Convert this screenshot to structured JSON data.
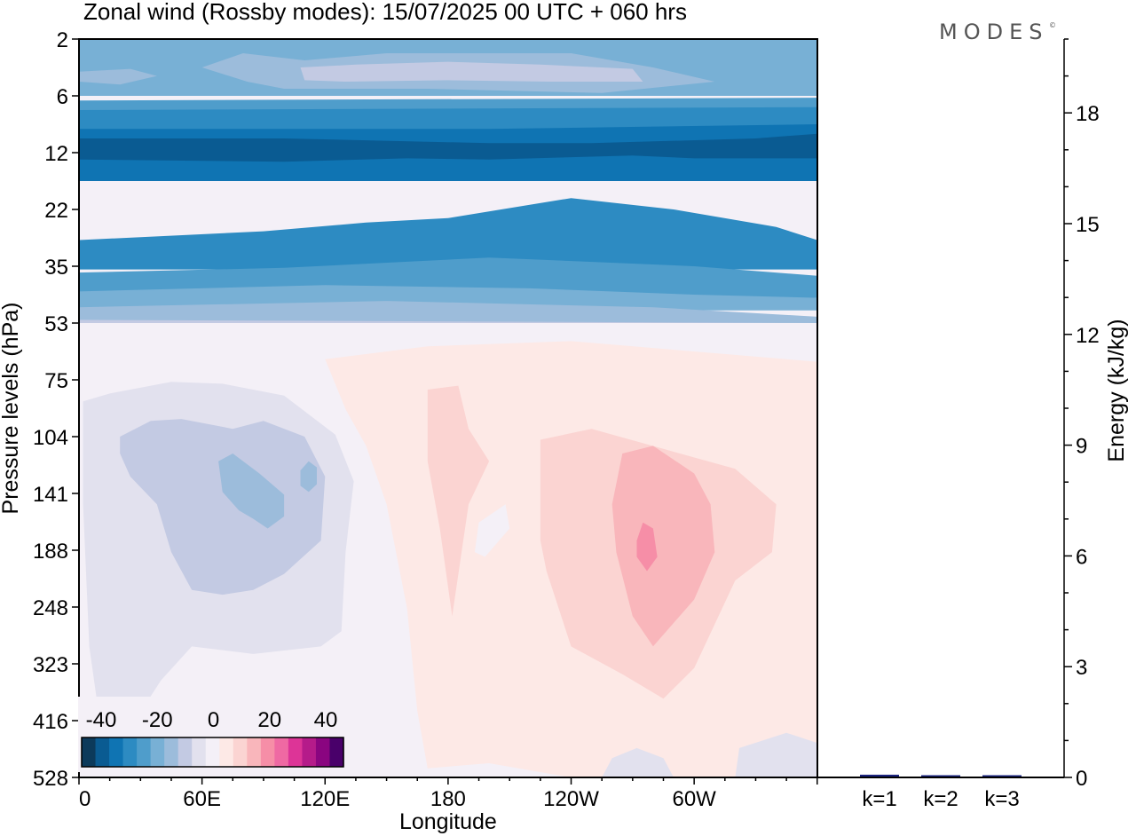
{
  "brand": {
    "logo_text": "MODES",
    "logo_mark": "©"
  },
  "chart_data": [
    {
      "type": "heatmap",
      "title": "Zonal wind (Rossby modes):  15/07/2025  00 UTC  + 060 hrs",
      "xlabel": "Longitude",
      "ylabel": "Pressure levels (hPa)",
      "x_ticks": [
        "0",
        "60E",
        "120E",
        "180",
        "120W",
        "60W"
      ],
      "y_ticks": [
        "2",
        "6",
        "12",
        "22",
        "35",
        "53",
        "75",
        "104",
        "141",
        "188",
        "248",
        "323",
        "416",
        "528"
      ],
      "colorbar": {
        "tick_labels": [
          "-40",
          "-20",
          "0",
          "20",
          "40"
        ],
        "colors": [
          "#0c3a5b",
          "#0a5b92",
          "#0f74b3",
          "#2d8bc2",
          "#4f9dcb",
          "#78b0d5",
          "#9cbcdb",
          "#c3cae3",
          "#e2e1ee",
          "#f4f0f7",
          "#fde9e6",
          "#fbd4d2",
          "#f9b6bb",
          "#f68ea7",
          "#ef69a3",
          "#dd3497",
          "#b51b8a",
          "#8a0580",
          "#49006a"
        ]
      },
      "features": [
        {
          "level": 9,
          "path": [
            [
              0,
              2
            ],
            [
              360,
              2
            ],
            [
              360,
              528
            ],
            [
              0,
              528
            ]
          ]
        },
        {
          "level": 5,
          "path": [
            [
              0,
              2
            ],
            [
              360,
              2
            ],
            [
              360,
              6
            ],
            [
              0,
              6
            ]
          ]
        },
        {
          "level": 6,
          "path": [
            [
              60,
              4
            ],
            [
              80,
              3
            ],
            [
              110,
              3.5
            ],
            [
              150,
              3
            ],
            [
              240,
              3
            ],
            [
              280,
              4
            ],
            [
              310,
              5
            ],
            [
              255,
              5.8
            ],
            [
              170,
              5.5
            ],
            [
              100,
              5.5
            ],
            [
              82,
              5
            ]
          ]
        },
        {
          "level": 7,
          "path": [
            [
              108,
              4
            ],
            [
              135,
              3.8
            ],
            [
              180,
              3.6
            ],
            [
              225,
              3.8
            ],
            [
              270,
              4.1
            ],
            [
              275,
              5
            ],
            [
              230,
              5
            ],
            [
              180,
              4.9
            ],
            [
              130,
              5
            ],
            [
              110,
              4.9
            ]
          ]
        },
        {
          "level": 6,
          "path": [
            [
              0,
              4.3
            ],
            [
              25,
              4.1
            ],
            [
              38,
              4.6
            ],
            [
              20,
              5.2
            ],
            [
              0,
              5
            ]
          ]
        },
        {
          "level": 4,
          "path": [
            [
              0,
              6.5
            ],
            [
              360,
              6.2
            ],
            [
              360,
              9
            ],
            [
              0,
              9
            ]
          ]
        },
        {
          "level": 3,
          "path": [
            [
              0,
              7.5
            ],
            [
              360,
              7.2
            ],
            [
              360,
              10
            ],
            [
              0,
              10
            ]
          ]
        },
        {
          "level": 2,
          "path": [
            [
              0,
              9.5
            ],
            [
              200,
              9.5
            ],
            [
              360,
              9
            ],
            [
              360,
              17
            ],
            [
              0,
              17
            ]
          ]
        },
        {
          "level": 1,
          "path": [
            [
              0,
              10.5
            ],
            [
              100,
              10.5
            ],
            [
              200,
              11
            ],
            [
              250,
              11
            ],
            [
              330,
              10.5
            ],
            [
              360,
              10
            ],
            [
              360,
              13
            ],
            [
              330,
              13
            ],
            [
              300,
              13
            ],
            [
              270,
              12.5
            ],
            [
              200,
              13.2
            ],
            [
              160,
              13
            ],
            [
              100,
              13.6
            ],
            [
              0,
              13.2
            ]
          ]
        },
        {
          "level": 3,
          "path": [
            [
              0,
              29
            ],
            [
              90,
              27
            ],
            [
              140,
              25
            ],
            [
              180,
              24
            ],
            [
              240,
              20
            ],
            [
              265,
              21
            ],
            [
              290,
              22
            ],
            [
              340,
              26
            ],
            [
              360,
              29
            ],
            [
              360,
              36
            ],
            [
              0,
              36
            ]
          ]
        },
        {
          "level": 4,
          "path": [
            [
              0,
              37
            ],
            [
              100,
              35.5
            ],
            [
              200,
              33
            ],
            [
              300,
              35
            ],
            [
              360,
              38
            ],
            [
              360,
              45
            ],
            [
              0,
              45
            ]
          ]
        },
        {
          "level": 5,
          "path": [
            [
              0,
              43
            ],
            [
              120,
              41
            ],
            [
              220,
              42
            ],
            [
              300,
              44
            ],
            [
              360,
              45
            ],
            [
              360,
              49
            ],
            [
              0,
              49
            ]
          ]
        },
        {
          "level": 6,
          "path": [
            [
              0,
              48
            ],
            [
              150,
              46
            ],
            [
              280,
              48
            ],
            [
              360,
              51
            ],
            [
              360,
              53
            ],
            [
              0,
              53
            ]
          ]
        },
        {
          "level": 7,
          "path": [
            [
              0,
              52
            ],
            [
              360,
              53
            ],
            [
              360,
              53
            ],
            [
              0,
              53
            ]
          ]
        },
        {
          "level": 8,
          "path": [
            [
              2,
              86
            ],
            [
              15,
              82
            ],
            [
              45,
              76
            ],
            [
              70,
              77
            ],
            [
              100,
              83
            ],
            [
              125,
              103
            ],
            [
              134,
              133
            ],
            [
              130,
              190
            ],
            [
              128,
              280
            ],
            [
              118,
              300
            ],
            [
              85,
              310
            ],
            [
              55,
              300
            ],
            [
              40,
              350
            ],
            [
              25,
              430
            ],
            [
              18,
              515
            ],
            [
              12,
              470
            ],
            [
              5,
              300
            ],
            [
              2,
              150
            ]
          ]
        },
        {
          "level": 7,
          "path": [
            [
              20,
              104
            ],
            [
              35,
              96
            ],
            [
              50,
              95
            ],
            [
              65,
              98
            ],
            [
              75,
              100
            ],
            [
              90,
              96
            ],
            [
              110,
              104
            ],
            [
              120,
              130
            ],
            [
              118,
              180
            ],
            [
              100,
              213
            ],
            [
              85,
              230
            ],
            [
              70,
              235
            ],
            [
              55,
              230
            ],
            [
              45,
              190
            ],
            [
              38,
              150
            ],
            [
              25,
              130
            ],
            [
              20,
              115
            ]
          ]
        },
        {
          "level": 6,
          "path": [
            [
              68,
              120
            ],
            [
              75,
              115
            ],
            [
              88,
              128
            ],
            [
              100,
              142
            ],
            [
              100,
              160
            ],
            [
              92,
              170
            ],
            [
              85,
              162
            ],
            [
              78,
              155
            ],
            [
              70,
              140
            ]
          ]
        },
        {
          "level": 6,
          "path": [
            [
              108,
              126
            ],
            [
              112,
              120
            ],
            [
              116,
              124
            ],
            [
              116,
              135
            ],
            [
              112,
              140
            ],
            [
              108,
              136
            ]
          ]
        },
        {
          "level": 10,
          "path": [
            [
              120,
              67
            ],
            [
              170,
              62
            ],
            [
              240,
              60
            ],
            [
              360,
              68
            ],
            [
              360,
              528
            ],
            [
              240,
              528
            ],
            [
              200,
              500
            ],
            [
              170,
              510
            ],
            [
              165,
              400
            ],
            [
              160,
              250
            ],
            [
              150,
              150
            ],
            [
              140,
              110
            ],
            [
              130,
              90
            ]
          ]
        },
        {
          "level": 9,
          "path": [
            [
              195,
              165
            ],
            [
              208,
              150
            ],
            [
              210,
              170
            ],
            [
              198,
              195
            ],
            [
              193,
              190
            ]
          ]
        },
        {
          "level": 11,
          "path": [
            [
              170,
              80
            ],
            [
              185,
              78
            ],
            [
              190,
              100
            ],
            [
              200,
              120
            ],
            [
              190,
              150
            ],
            [
              182,
              260
            ],
            [
              176,
              170
            ],
            [
              170,
              120
            ],
            [
              170,
              90
            ]
          ]
        },
        {
          "level": 11,
          "path": [
            [
              225,
              106
            ],
            [
              250,
              100
            ],
            [
              285,
              112
            ],
            [
              320,
              125
            ],
            [
              340,
              150
            ],
            [
              338,
              190
            ],
            [
              320,
              220
            ],
            [
              300,
              330
            ],
            [
              285,
              380
            ],
            [
              265,
              340
            ],
            [
              240,
              300
            ],
            [
              228,
              210
            ],
            [
              225,
              180
            ],
            [
              225,
              140
            ]
          ]
        },
        {
          "level": 12,
          "path": [
            [
              265,
              115
            ],
            [
              280,
              110
            ],
            [
              300,
              128
            ],
            [
              308,
              150
            ],
            [
              310,
              190
            ],
            [
              300,
              240
            ],
            [
              280,
              300
            ],
            [
              270,
              260
            ],
            [
              262,
              190
            ],
            [
              260,
              150
            ]
          ]
        },
        {
          "level": 13,
          "path": [
            [
              275,
              165
            ],
            [
              280,
              170
            ],
            [
              282,
              195
            ],
            [
              277,
              210
            ],
            [
              272,
              195
            ],
            [
              272,
              180
            ]
          ]
        },
        {
          "level": 8,
          "path": [
            [
              255,
              528
            ],
            [
              260,
              490
            ],
            [
              272,
              470
            ],
            [
              285,
              490
            ],
            [
              290,
              528
            ]
          ]
        },
        {
          "level": 8,
          "path": [
            [
              320,
              528
            ],
            [
              322,
              470
            ],
            [
              345,
              440
            ],
            [
              360,
              460
            ],
            [
              360,
              528
            ]
          ]
        }
      ]
    },
    {
      "type": "bar",
      "ylabel": "Energy (kJ/kg)",
      "categories": [
        "k=1",
        "k=2",
        "k=3"
      ],
      "values": [
        0.05,
        0.01,
        0.01
      ],
      "ylim": [
        0,
        20
      ],
      "y_ticks": [
        "0",
        "3",
        "6",
        "9",
        "12",
        "15",
        "18"
      ],
      "bar_color": "#1a237e"
    }
  ]
}
